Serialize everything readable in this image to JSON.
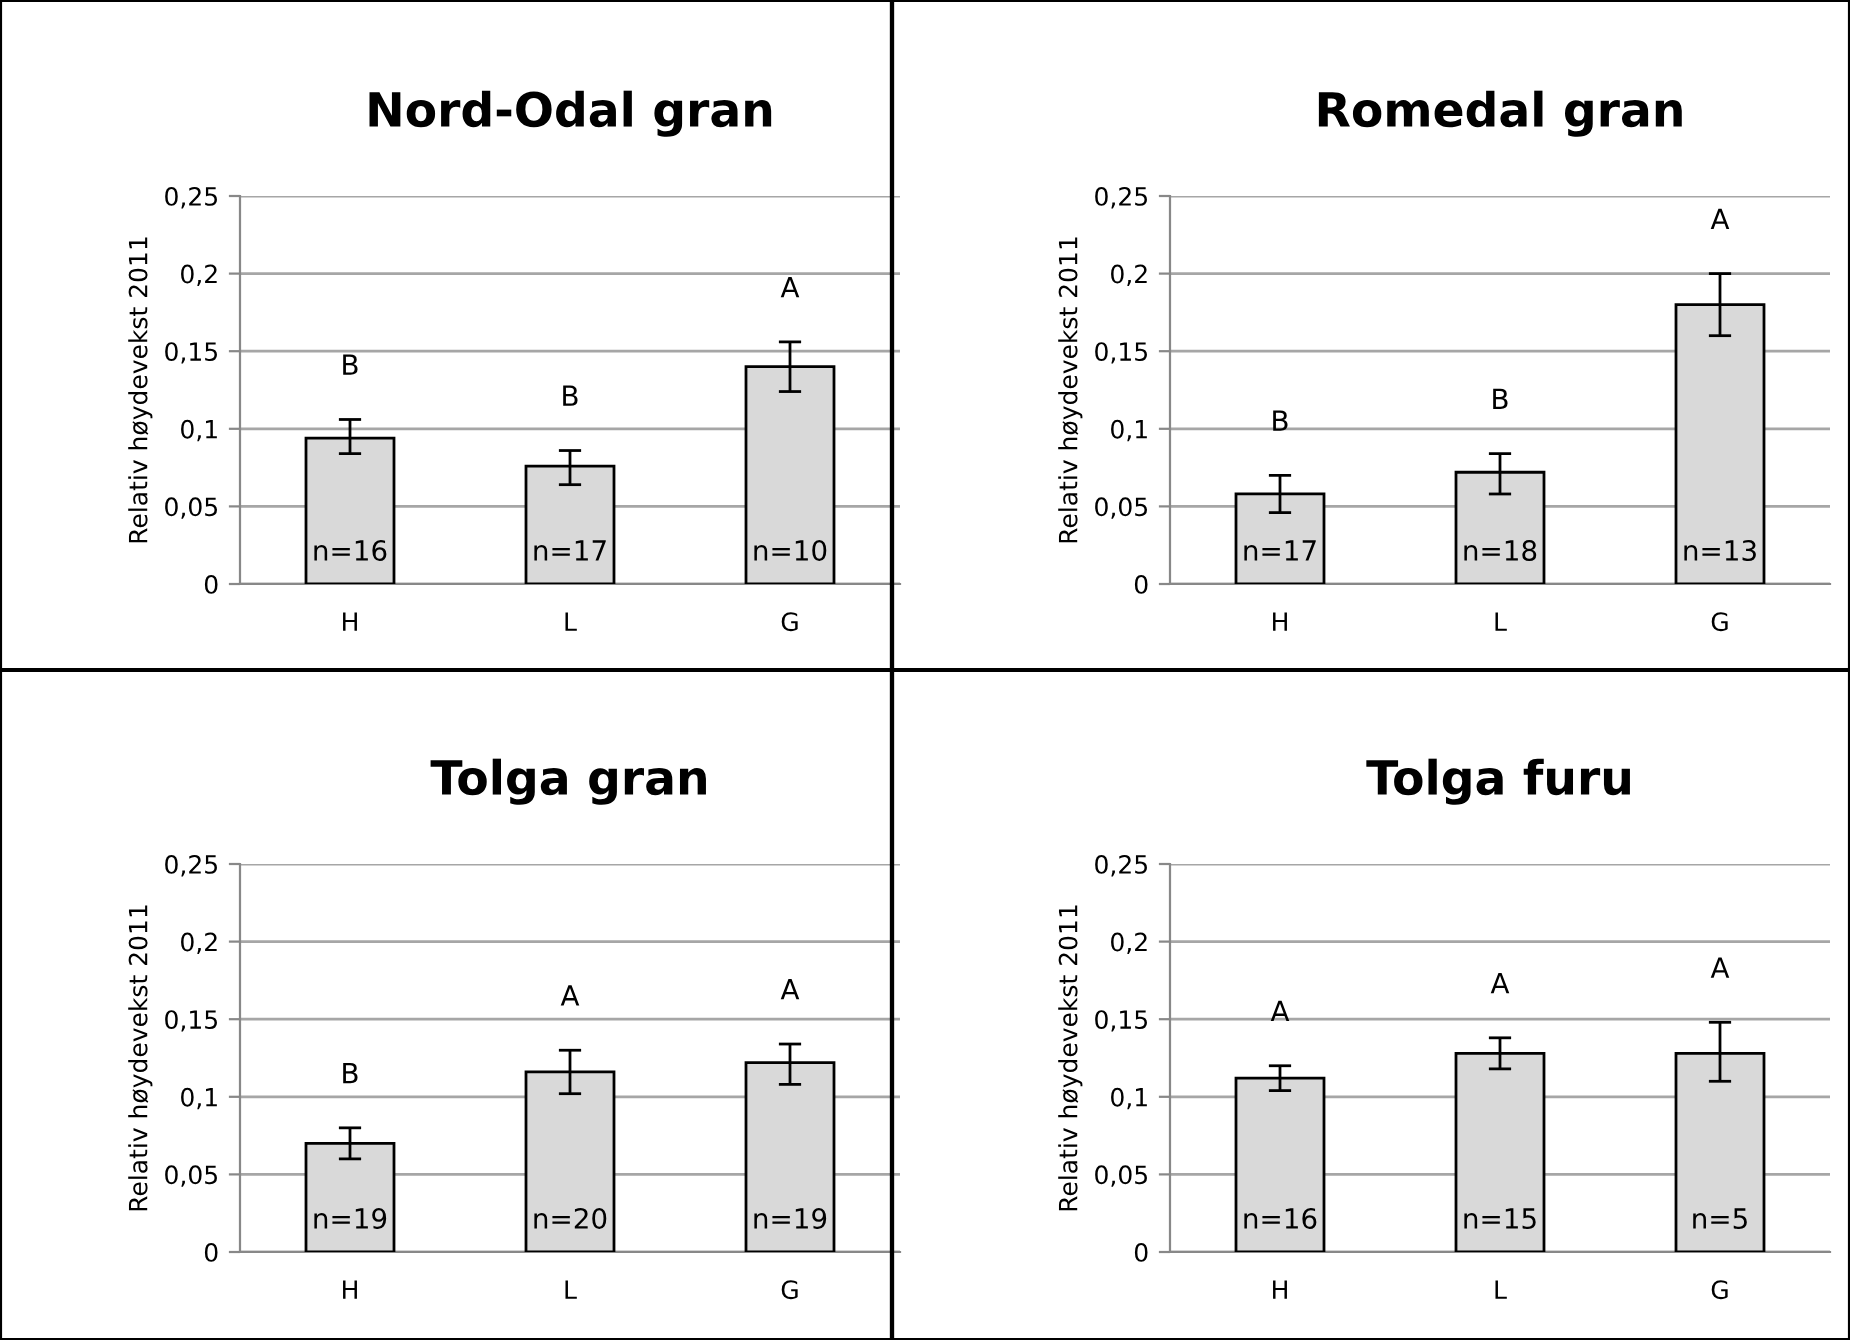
{
  "chart_data": [
    {
      "type": "bar",
      "title": "Nord-Odal gran",
      "ylabel": "Relativ høydevekst 2011",
      "categories": [
        "H",
        "L",
        "G"
      ],
      "values": [
        0.094,
        0.076,
        0.14
      ],
      "errors": [
        [
          0.084,
          0.106
        ],
        [
          0.064,
          0.086
        ],
        [
          0.124,
          0.156
        ]
      ],
      "color": "#d9d9d9",
      "ylim": [
        0,
        0.25
      ],
      "yticks": [
        0,
        {
          "value": 0.05,
          "label": "0,05"
        },
        {
          "value": 0.1,
          "label": "0,1"
        },
        {
          "value": 0.15,
          "label": "0,15"
        },
        {
          "value": 0.2,
          "label": "0,2"
        },
        {
          "value": 0.25,
          "label": "0,25"
        }
      ],
      "grid": "y",
      "annotations": [
        "B",
        "B",
        "A",
        "n=16",
        "n=17",
        "n=10"
      ]
    },
    {
      "type": "bar",
      "title": "Romedal gran",
      "ylabel": "Relativ høydevekst 2011",
      "categories": [
        "H",
        "L",
        "G"
      ],
      "values": [
        0.058,
        0.072,
        0.18
      ],
      "errors": [
        [
          0.046,
          0.07
        ],
        [
          0.058,
          0.084
        ],
        [
          0.16,
          0.2
        ]
      ],
      "color": "#d9d9d9",
      "ylim": [
        0,
        0.25
      ],
      "yticks": [
        0,
        {
          "value": 0.05,
          "label": "0,05"
        },
        {
          "value": 0.1,
          "label": "0,1"
        },
        {
          "value": 0.15,
          "label": "0,15"
        },
        {
          "value": 0.2,
          "label": "0,2"
        },
        {
          "value": 0.25,
          "label": "0,25"
        }
      ],
      "grid": "y",
      "annotations": [
        "B",
        "B",
        "A",
        "n=17",
        "n=18",
        "n=13"
      ]
    },
    {
      "type": "bar",
      "title": "Tolga gran",
      "ylabel": "Relativ høydevekst 2011",
      "categories": [
        "H",
        "L",
        "G"
      ],
      "values": [
        0.07,
        0.116,
        0.122
      ],
      "errors": [
        [
          0.06,
          0.08
        ],
        [
          0.102,
          0.13
        ],
        [
          0.108,
          0.134
        ]
      ],
      "color": "#d9d9d9",
      "ylim": [
        0,
        0.25
      ],
      "yticks": [
        0,
        {
          "value": 0.05,
          "label": "0,05"
        },
        {
          "value": 0.1,
          "label": "0,1"
        },
        {
          "value": 0.15,
          "label": "0,15"
        },
        {
          "value": 0.2,
          "label": "0,2"
        },
        {
          "value": 0.25,
          "label": "0,25"
        }
      ],
      "grid": "y",
      "annotations": [
        "B",
        "A",
        "A",
        "n=19",
        "n=20",
        "n=19"
      ]
    },
    {
      "type": "bar",
      "title": "Tolga furu",
      "ylabel": "Relativ høydevekst 2011",
      "categories": [
        "H",
        "L",
        "G"
      ],
      "values": [
        0.112,
        0.128,
        0.128
      ],
      "errors": [
        [
          0.104,
          0.12
        ],
        [
          0.118,
          0.138
        ],
        [
          0.11,
          0.148
        ]
      ],
      "color": "#d9d9d9",
      "ylim": [
        0,
        0.25
      ],
      "yticks": [
        0,
        {
          "value": 0.05,
          "label": "0,05"
        },
        {
          "value": 0.1,
          "label": "0,1"
        },
        {
          "value": 0.15,
          "label": "0,15"
        },
        {
          "value": 0.2,
          "label": "0,2"
        },
        {
          "value": 0.25,
          "label": "0,25"
        }
      ],
      "grid": "y",
      "annotations": [
        "A",
        "A",
        "A",
        "n=16",
        "n=15",
        "n=5"
      ]
    }
  ]
}
